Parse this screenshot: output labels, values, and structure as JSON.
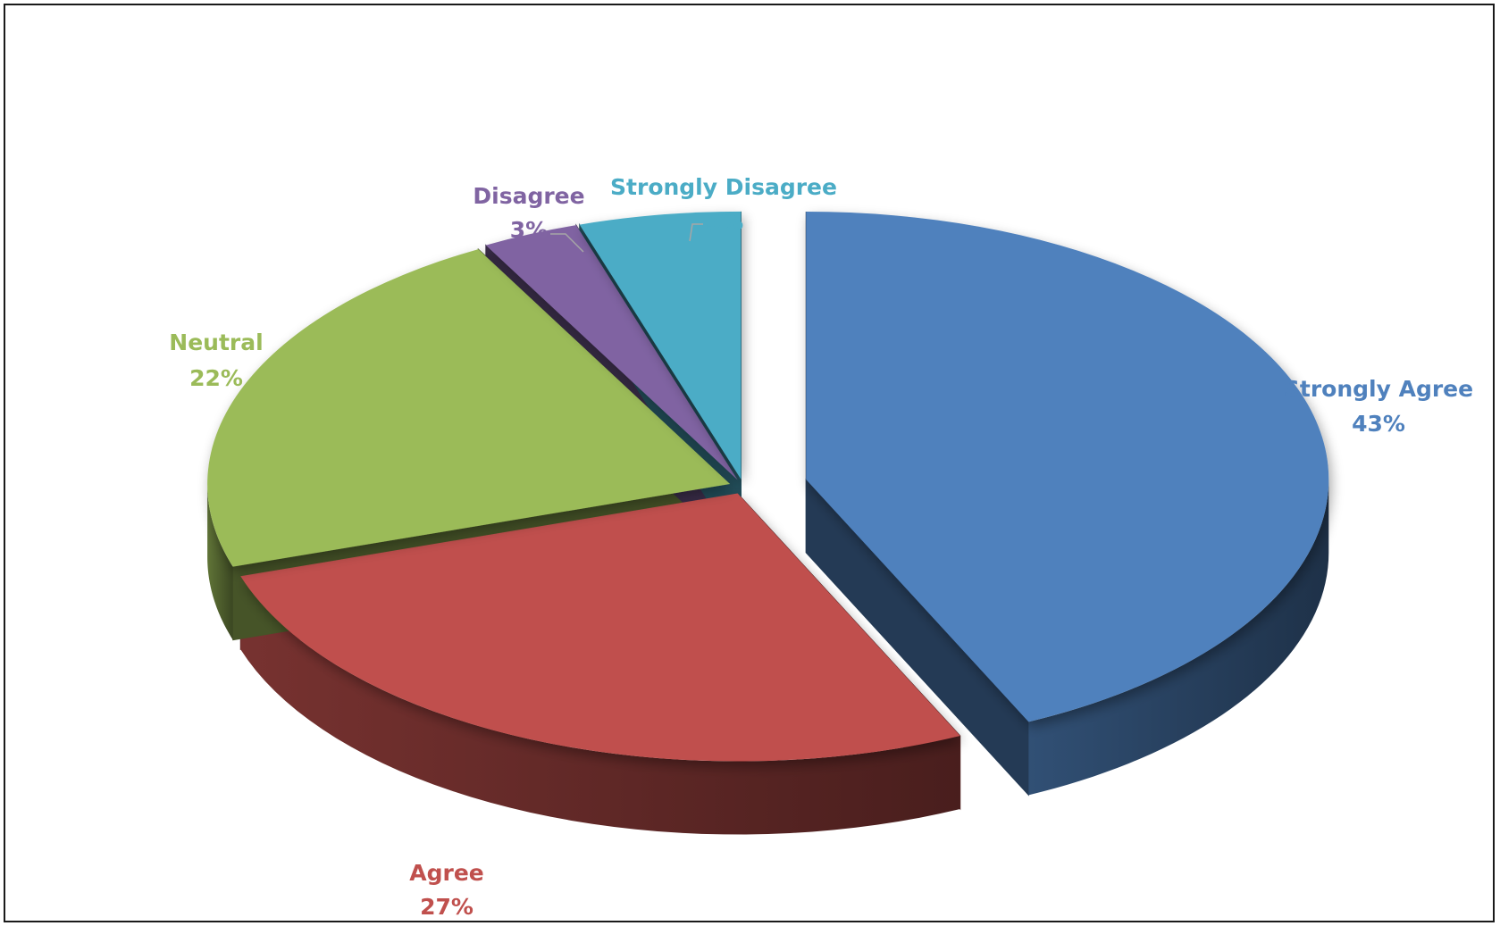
{
  "chart_data": {
    "type": "pie",
    "style": "3d-exploded",
    "title": "",
    "slices": [
      {
        "label": "Strongly Agree",
        "value": 43,
        "display": "43%",
        "color": "#4f81bd"
      },
      {
        "label": "Agree",
        "value": 27,
        "display": "27%",
        "color": "#c0504d"
      },
      {
        "label": "Neutral",
        "value": 22,
        "display": "22%",
        "color": "#9bbb59"
      },
      {
        "label": "Disagree",
        "value": 3,
        "display": "3%",
        "color": "#8064a2"
      },
      {
        "label": "Strongly Disagree",
        "value": 5,
        "display": "5%",
        "color": "#4bacc6"
      }
    ],
    "legend": "none",
    "data_labels": "category-and-percent"
  }
}
